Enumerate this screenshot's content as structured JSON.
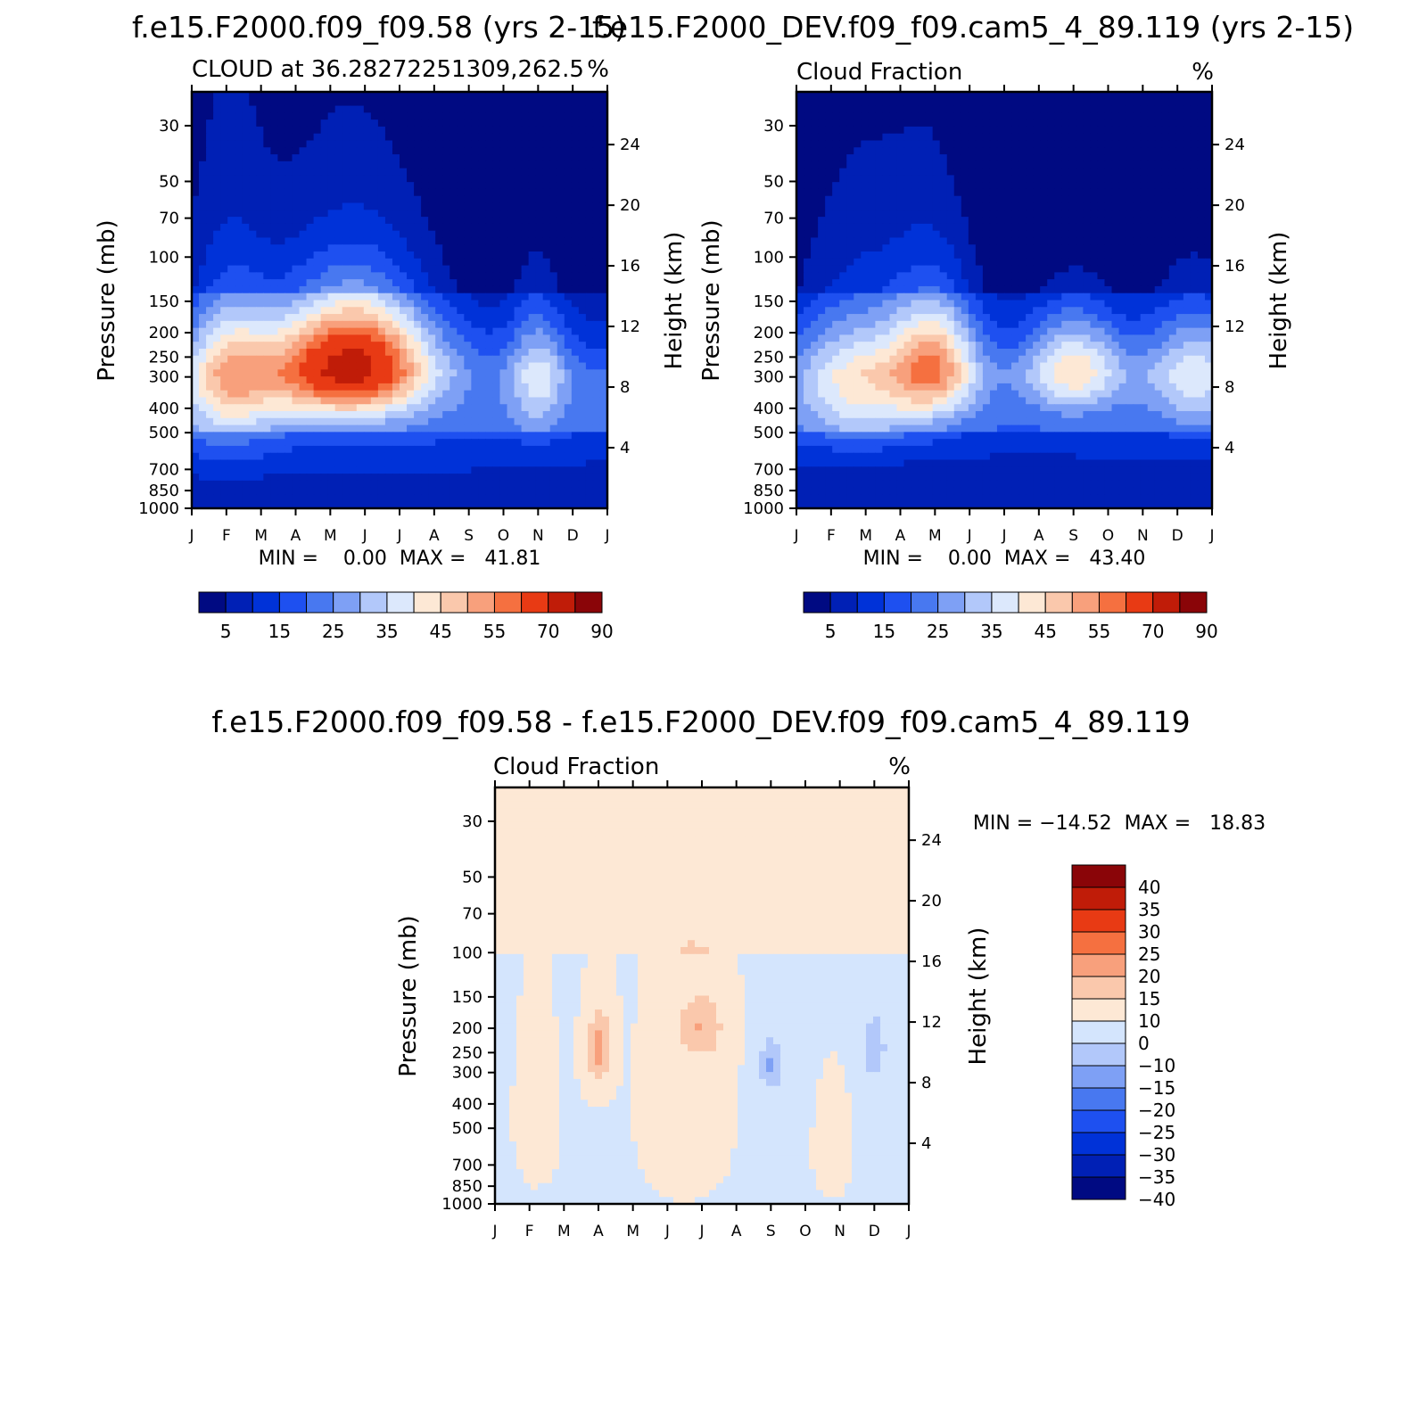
{
  "colors": {
    "seq": [
      "#000a82",
      "#0020b5",
      "#0032d8",
      "#1e50f0",
      "#4878f0",
      "#7ea0f5",
      "#b2c8fa",
      "#dce8fc",
      "#fde8d5",
      "#fac8ac",
      "#f8a07c",
      "#f57040",
      "#e83a14",
      "#c01c08",
      "#8a0508"
    ],
    "div": [
      "#000a82",
      "#0020b5",
      "#0032d8",
      "#1e50f0",
      "#4878f0",
      "#7ea0f5",
      "#b2c8fa",
      "#d4e5fd",
      "#fde8d5",
      "#fac8ac",
      "#f8a07c",
      "#f57040",
      "#e83a14",
      "#c01c08",
      "#8a0508"
    ]
  },
  "chart_data": [
    {
      "type": "heatmap",
      "title": "f.e15.F2000.f09_f09.58 (yrs 2-15)",
      "subtitle_left": "CLOUD at 36.28272251309,262.5",
      "subtitle_right": "%",
      "xlabel": "",
      "ylabel": "Pressure (mb)",
      "y2label": "Height (km)",
      "x_ticks": [
        "J",
        "F",
        "M",
        "A",
        "M",
        "J",
        "J",
        "A",
        "S",
        "O",
        "N",
        "D",
        "J"
      ],
      "y_ticks": [
        30,
        50,
        70,
        100,
        150,
        200,
        250,
        300,
        400,
        500,
        700,
        850,
        1000
      ],
      "y2_ticks": [
        24,
        20,
        16,
        12,
        8,
        4
      ],
      "ylim": [
        1000,
        25
      ],
      "minmax_text": "MIN =    0.00  MAX =   41.81",
      "min": 0.0,
      "max": 41.81,
      "colorbar_orientation": "horizontal",
      "colorbar_labels": [
        "5",
        "15",
        "25",
        "35",
        "45",
        "55",
        "70",
        "90"
      ],
      "levels": [
        5,
        10,
        15,
        20,
        25,
        30,
        35,
        40,
        45,
        50,
        55,
        60,
        70,
        80,
        90
      ],
      "blobs": [
        {
          "month": 1.0,
          "pressure": 280,
          "value": 34,
          "sx": 0.9,
          "sp": 140
        },
        {
          "month": 3.8,
          "pressure": 270,
          "value": 42,
          "sx": 1.6,
          "sp": 110
        },
        {
          "month": 5.2,
          "pressure": 250,
          "value": 40,
          "sx": 1.4,
          "sp": 100
        },
        {
          "month": 10.0,
          "pressure": 290,
          "value": 28,
          "sx": 0.6,
          "sp": 120
        },
        {
          "month": 6.5,
          "pressure": 550,
          "value": 12,
          "sx": 2.5,
          "sp": 350
        },
        {
          "month": 1.0,
          "pressure": 550,
          "value": 14,
          "sx": 1.5,
          "sp": 250
        }
      ]
    },
    {
      "type": "heatmap",
      "title": "f.e15.F2000_DEV.f09_f09.cam5_4_89.119 (yrs 2-15)",
      "subtitle_left": "Cloud Fraction",
      "subtitle_right": "%",
      "xlabel": "",
      "ylabel": "Pressure (mb)",
      "y2label": "Height (km)",
      "x_ticks": [
        "J",
        "F",
        "M",
        "A",
        "M",
        "J",
        "J",
        "A",
        "S",
        "O",
        "N",
        "D",
        "J"
      ],
      "y_ticks": [
        30,
        50,
        70,
        100,
        150,
        200,
        250,
        300,
        400,
        500,
        700,
        850,
        1000
      ],
      "y2_ticks": [
        24,
        20,
        16,
        12,
        8,
        4
      ],
      "ylim": [
        1000,
        25
      ],
      "minmax_text": "MIN =    0.00  MAX =   43.40",
      "min": 0.0,
      "max": 43.4,
      "colorbar_orientation": "horizontal",
      "colorbar_labels": [
        "5",
        "15",
        "25",
        "35",
        "45",
        "55",
        "70",
        "90"
      ],
      "levels": [
        5,
        10,
        15,
        20,
        25,
        30,
        35,
        40,
        45,
        50,
        55,
        60,
        70,
        80,
        90
      ],
      "blobs": [
        {
          "month": 1.8,
          "pressure": 300,
          "value": 33,
          "sx": 1.3,
          "sp": 150
        },
        {
          "month": 4.0,
          "pressure": 260,
          "value": 44,
          "sx": 0.9,
          "sp": 110
        },
        {
          "month": 8.0,
          "pressure": 270,
          "value": 36,
          "sx": 1.0,
          "sp": 90
        },
        {
          "month": 11.5,
          "pressure": 280,
          "value": 30,
          "sx": 1.0,
          "sp": 110
        },
        {
          "month": 6.5,
          "pressure": 500,
          "value": 9,
          "sx": 2.8,
          "sp": 300
        }
      ]
    },
    {
      "type": "heatmap",
      "title": "f.e15.F2000.f09_f09.58 - f.e15.F2000_DEV.f09_f09.cam5_4_89.119",
      "subtitle_left": "Cloud Fraction",
      "subtitle_right": "%",
      "xlabel": "",
      "ylabel": "Pressure (mb)",
      "y2label": "Height (km)",
      "x_ticks": [
        "J",
        "F",
        "M",
        "A",
        "M",
        "J",
        "J",
        "A",
        "S",
        "O",
        "N",
        "D",
        "J"
      ],
      "y_ticks": [
        30,
        50,
        70,
        100,
        150,
        200,
        250,
        300,
        400,
        500,
        700,
        850,
        1000
      ],
      "y2_ticks": [
        24,
        20,
        16,
        12,
        8,
        4
      ],
      "ylim": [
        1000,
        25
      ],
      "minmax_text": "MIN = −14.52  MAX =   18.83",
      "min": -14.52,
      "max": 18.83,
      "colorbar_orientation": "vertical",
      "colorbar_labels": [
        "40",
        "35",
        "30",
        "25",
        "20",
        "15",
        "10",
        "0",
        "−10",
        "−15",
        "−20",
        "−25",
        "−30",
        "−35",
        "−40"
      ],
      "levels": [
        -40,
        -35,
        -30,
        -25,
        -20,
        -15,
        -10,
        0,
        10,
        15,
        20,
        25,
        30,
        35,
        40
      ],
      "blobs": [
        {
          "month": 3.0,
          "pressure": 240,
          "value": 19,
          "sx": 0.3,
          "sp": 80
        },
        {
          "month": 6.0,
          "pressure": 200,
          "value": 13,
          "sx": 0.6,
          "sp": 50
        },
        {
          "month": 8.0,
          "pressure": 280,
          "value": -14,
          "sx": 0.3,
          "sp": 60
        },
        {
          "month": 11.0,
          "pressure": 240,
          "value": -11,
          "sx": 0.3,
          "sp": 70
        },
        {
          "month": 1.2,
          "pressure": 450,
          "value": 5,
          "sx": 0.7,
          "sp": 400
        },
        {
          "month": 5.5,
          "pressure": 400,
          "value": 6,
          "sx": 1.3,
          "sp": 500
        },
        {
          "month": 9.8,
          "pressure": 600,
          "value": 5,
          "sx": 0.6,
          "sp": 350
        }
      ]
    }
  ]
}
